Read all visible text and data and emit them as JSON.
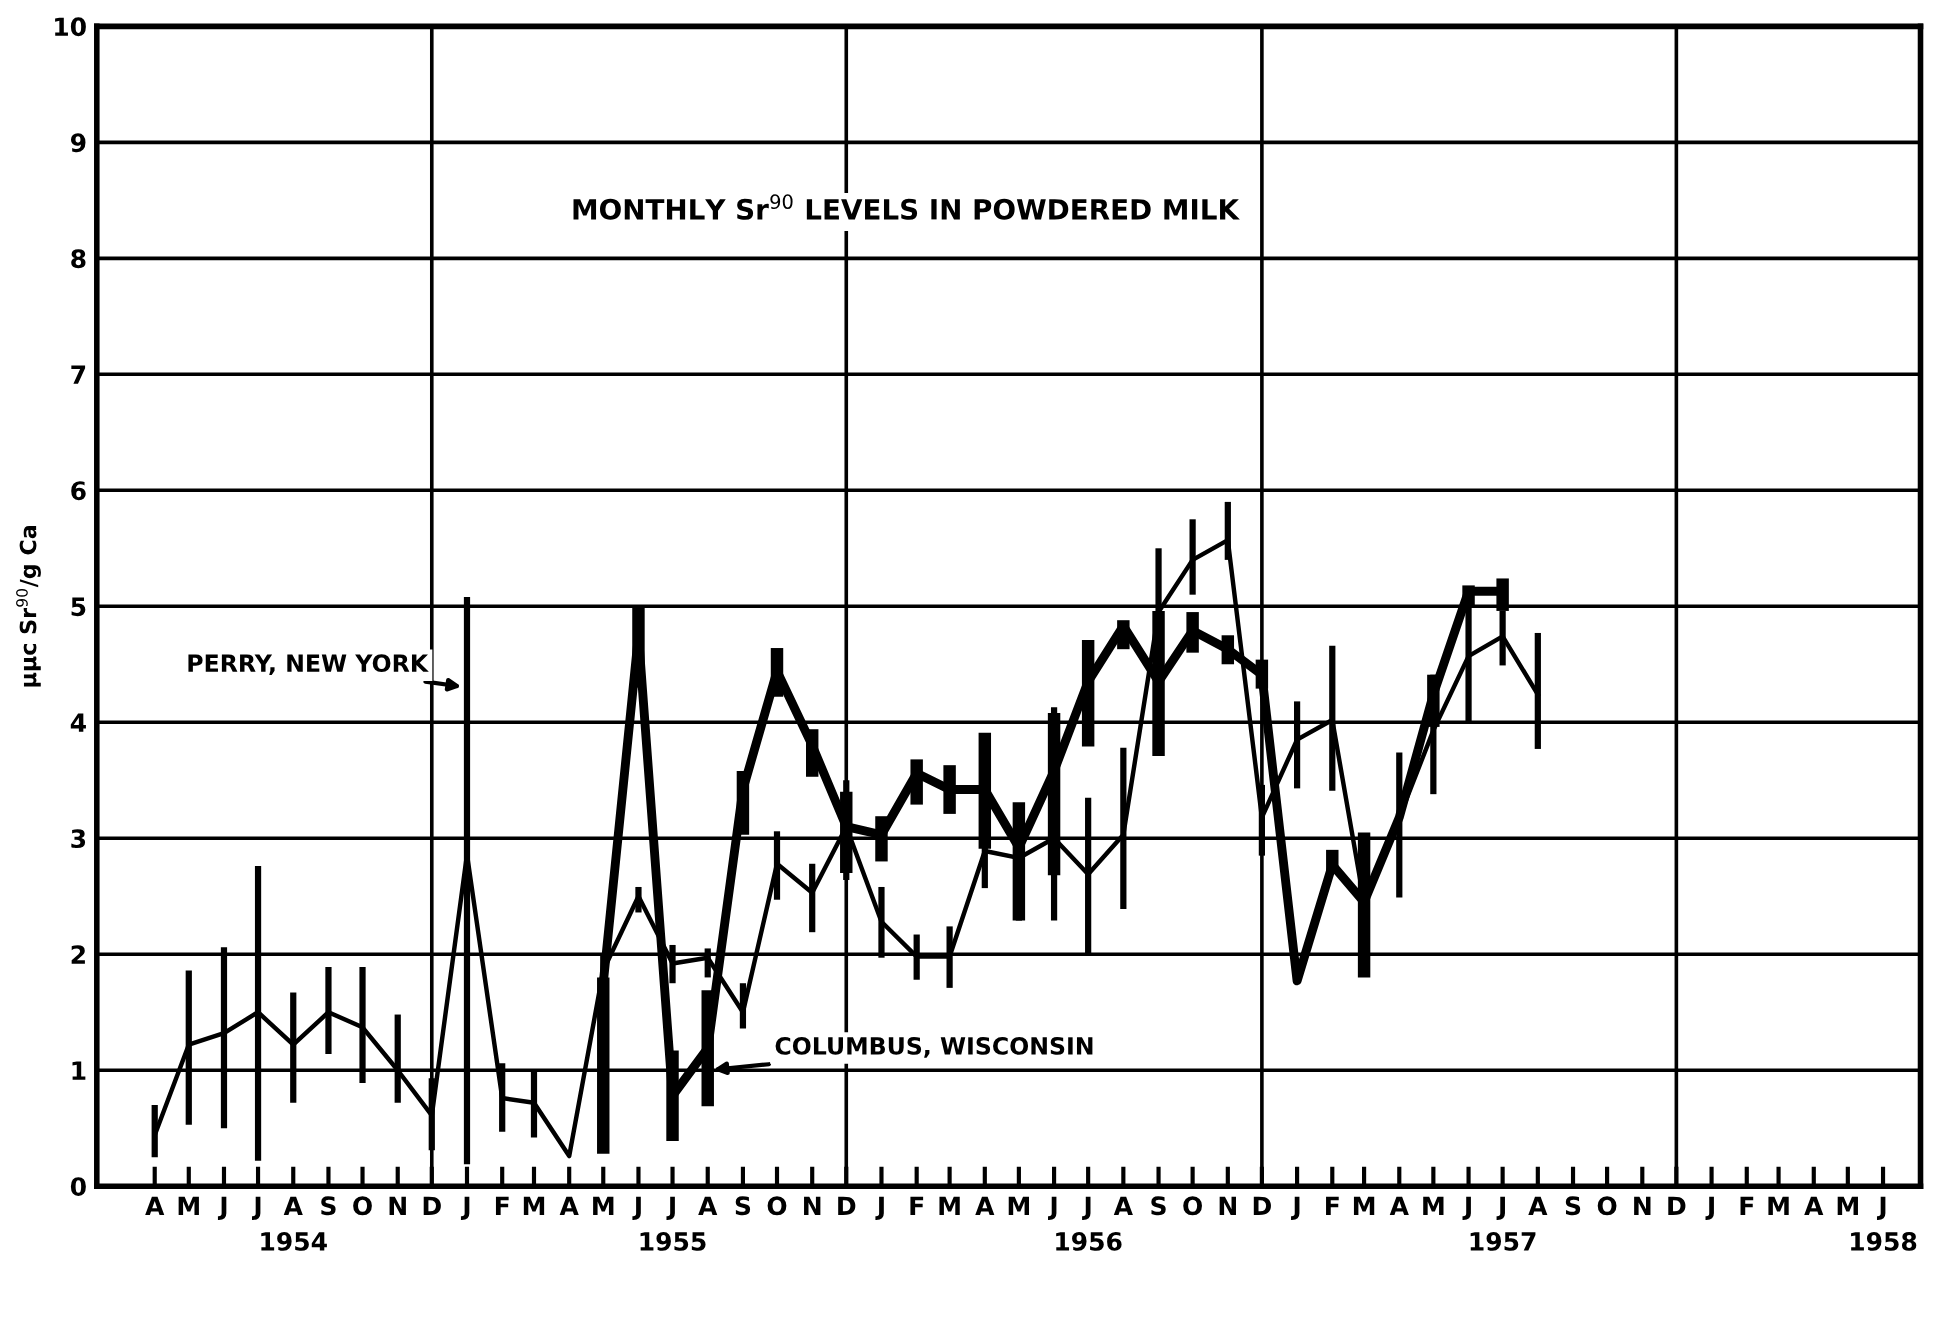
{
  "chart_data": {
    "type": "line",
    "title": "MONTHLY Sr$^{90}$ LEVELS IN POWDERED MILK",
    "ylabel": "μμc Sr$^{90}$/g Ca",
    "xlim": [
      "1954-02-09",
      "1958-07-04"
    ],
    "ylim": [
      0,
      10
    ],
    "yticks": [
      0,
      1,
      2,
      3,
      4,
      5,
      6,
      7,
      8,
      9,
      10
    ],
    "xticks": [
      {
        "value": "1954-04",
        "label": "A"
      },
      {
        "value": "1954-05",
        "label": "M"
      },
      {
        "value": "1954-06",
        "label": "J"
      },
      {
        "value": "1954-07",
        "label": "J"
      },
      {
        "value": "1954-08",
        "label": "A\n1954"
      },
      {
        "value": "1954-09",
        "label": "S"
      },
      {
        "value": "1954-10",
        "label": "O"
      },
      {
        "value": "1954-11",
        "label": "N"
      },
      {
        "value": "1954-12",
        "label": "D"
      },
      {
        "value": "1955-01",
        "label": "J"
      },
      {
        "value": "1955-02",
        "label": "F"
      },
      {
        "value": "1955-03",
        "label": "M"
      },
      {
        "value": "1955-04",
        "label": "A"
      },
      {
        "value": "1955-05",
        "label": "M"
      },
      {
        "value": "1955-06",
        "label": "J"
      },
      {
        "value": "1955-07",
        "label": "J\n1955"
      },
      {
        "value": "1955-08",
        "label": "A"
      },
      {
        "value": "1955-09",
        "label": "S"
      },
      {
        "value": "1955-10",
        "label": "O"
      },
      {
        "value": "1955-11",
        "label": "N"
      },
      {
        "value": "1955-12",
        "label": "D"
      },
      {
        "value": "1956-01",
        "label": "J"
      },
      {
        "value": "1956-02",
        "label": "F"
      },
      {
        "value": "1956-03",
        "label": "M"
      },
      {
        "value": "1956-04",
        "label": "A"
      },
      {
        "value": "1956-05",
        "label": "M"
      },
      {
        "value": "1956-06",
        "label": "J"
      },
      {
        "value": "1956-07",
        "label": "J\n1956"
      },
      {
        "value": "1956-08",
        "label": "A"
      },
      {
        "value": "1956-09",
        "label": "S"
      },
      {
        "value": "1956-10",
        "label": "O"
      },
      {
        "value": "1956-11",
        "label": "N"
      },
      {
        "value": "1956-12",
        "label": "D"
      },
      {
        "value": "1957-01",
        "label": "J"
      },
      {
        "value": "1957-02",
        "label": "F"
      },
      {
        "value": "1957-03",
        "label": "M"
      },
      {
        "value": "1957-04",
        "label": "A"
      },
      {
        "value": "1957-05",
        "label": "M"
      },
      {
        "value": "1957-06",
        "label": "J"
      },
      {
        "value": "1957-07",
        "label": "J\n1957"
      },
      {
        "value": "1957-08",
        "label": "A"
      },
      {
        "value": "1957-09",
        "label": "S"
      },
      {
        "value": "1957-10",
        "label": "O"
      },
      {
        "value": "1957-11",
        "label": "N"
      },
      {
        "value": "1957-12",
        "label": "D"
      },
      {
        "value": "1958-01",
        "label": "J"
      },
      {
        "value": "1958-02",
        "label": "F"
      },
      {
        "value": "1958-03",
        "label": "M"
      },
      {
        "value": "1958-04",
        "label": "A"
      },
      {
        "value": "1958-05",
        "label": "M"
      },
      {
        "value": "1958-06",
        "label": "J\n1958"
      }
    ],
    "grid": "y",
    "legend": false,
    "marker": "none",
    "line_style": "solid",
    "ref_lines": [
      {
        "axis": "x",
        "value": "1954-12",
        "color": "#000000"
      },
      {
        "axis": "x",
        "value": "1955-12",
        "color": "#000000"
      },
      {
        "axis": "x",
        "value": "1956-12",
        "color": "#000000"
      },
      {
        "axis": "x",
        "value": "1957-12",
        "color": "#000000"
      }
    ],
    "annotations": [
      {
        "text": "PERRY, NEW YORK",
        "x": "1955-01",
        "y": 4.3
      },
      {
        "text": "COLUMBUS, WISCONSIN",
        "x": "1955-08",
        "y": 1.0
      }
    ],
    "series": [
      {
        "color": "#000000",
        "x": [
          "1954-04",
          "1954-05",
          "1954-06",
          "1954-07",
          "1954-08",
          "1954-09",
          "1954-10",
          "1954-11",
          "1954-12",
          "1955-01",
          "1955-02",
          "1955-03",
          "1955-04",
          "1955-05",
          "1955-06",
          "1955-07",
          "1955-08",
          "1955-09",
          "1955-10",
          "1955-11",
          "1955-12",
          "1956-01",
          "1956-02",
          "1956-03",
          "1956-04",
          "1956-05",
          "1956-06",
          "1956-07",
          "1956-08",
          "1956-09",
          "1956-10",
          "1956-11",
          "1956-12",
          "1957-01",
          "1957-02",
          "1957-03",
          "1957-04",
          "1957-05",
          "1957-06",
          "1957-07",
          "1957-08"
        ],
        "values": [
          0.44,
          1.22,
          1.32,
          1.5,
          1.22,
          1.5,
          1.37,
          1.0,
          0.61,
          2.86,
          0.76,
          0.72,
          0.26,
          1.86,
          2.5,
          1.92,
          1.97,
          1.5,
          2.78,
          2.53,
          3.1,
          2.28,
          1.98,
          1.98,
          2.89,
          2.83,
          3.0,
          2.69,
          3.03,
          4.95,
          5.4,
          5.57,
          3.18,
          3.85,
          4.02,
          2.45,
          3.18,
          3.93,
          4.57,
          4.74,
          4.24
        ],
        "errors": [
          [
            0.25,
            0.7
          ],
          [
            0.53,
            1.86
          ],
          [
            0.5,
            2.06
          ],
          [
            0.22,
            2.76
          ],
          [
            0.72,
            1.67
          ],
          [
            1.14,
            1.89
          ],
          [
            0.89,
            1.89
          ],
          [
            0.72,
            1.48
          ],
          [
            0.31,
            0.93
          ],
          [
            0.19,
            5.08
          ],
          [
            0.47,
            1.06
          ],
          [
            0.42,
            1.0
          ],
          null,
          [
            1.6,
            2.0
          ],
          [
            2.36,
            2.58
          ],
          [
            1.75,
            2.08
          ],
          [
            1.8,
            2.05
          ],
          [
            1.36,
            1.75
          ],
          [
            2.47,
            3.06
          ],
          [
            2.19,
            2.78
          ],
          [
            2.64,
            3.5
          ],
          [
            1.97,
            2.58
          ],
          [
            1.78,
            2.17
          ],
          [
            1.71,
            2.24
          ],
          [
            2.57,
            3.14
          ],
          [
            2.29,
            3.18
          ],
          [
            2.29,
            4.13
          ],
          [
            1.99,
            3.35
          ],
          [
            2.39,
            3.78
          ],
          [
            4.6,
            5.5
          ],
          [
            5.1,
            5.75
          ],
          [
            5.4,
            5.9
          ],
          [
            2.85,
            3.46
          ],
          [
            3.43,
            4.18
          ],
          [
            3.41,
            4.66
          ],
          [
            2.3,
            2.9
          ],
          [
            2.49,
            3.74
          ],
          [
            3.38,
            4.41
          ],
          [
            3.99,
            5.13
          ],
          [
            4.49,
            4.96
          ],
          [
            3.77,
            4.77
          ]
        ]
      },
      {
        "color": "#000000",
        "x": [
          "1955-05",
          "1955-06",
          "1955-07",
          "1955-08",
          "1955-09",
          "1955-10",
          "1955-11",
          "1955-12",
          "1956-01",
          "1956-02",
          "1956-03",
          "1956-04",
          "1956-05",
          "1956-06",
          "1956-07",
          "1956-08",
          "1956-09",
          "1956-10",
          "1956-11",
          "1956-12",
          "1957-01",
          "1957-02",
          "1957-03",
          "1957-04",
          "1957-05",
          "1957-06",
          "1957-07"
        ],
        "values": [
          1.75,
          4.75,
          0.78,
          1.19,
          3.42,
          4.44,
          3.8,
          3.1,
          3.03,
          3.56,
          3.42,
          3.42,
          2.92,
          3.58,
          4.35,
          4.83,
          4.35,
          4.79,
          4.63,
          4.41,
          1.77,
          2.77,
          2.45,
          3.18,
          4.24,
          5.13,
          5.13
        ],
        "errors": [
          [
            0.28,
            1.8
          ],
          [
            4.3,
            5.0
          ],
          [
            0.39,
            1.17
          ],
          [
            0.69,
            1.69
          ],
          [
            3.03,
            3.58
          ],
          [
            4.22,
            4.64
          ],
          [
            3.53,
            3.94
          ],
          [
            2.7,
            3.4
          ],
          [
            2.8,
            3.19
          ],
          [
            3.29,
            3.68
          ],
          [
            3.21,
            3.63
          ],
          [
            2.91,
            3.91
          ],
          [
            2.29,
            3.31
          ],
          [
            2.68,
            4.08
          ],
          [
            3.79,
            4.71
          ],
          [
            4.63,
            4.88
          ],
          [
            3.71,
            4.96
          ],
          [
            4.6,
            4.95
          ],
          [
            4.5,
            4.75
          ],
          [
            4.29,
            4.54
          ],
          null,
          [
            2.7,
            2.9
          ],
          [
            1.8,
            3.05
          ],
          null,
          [
            3.96,
            4.41
          ],
          [
            4.99,
            5.18
          ],
          [
            4.96,
            5.24
          ]
        ]
      }
    ]
  }
}
